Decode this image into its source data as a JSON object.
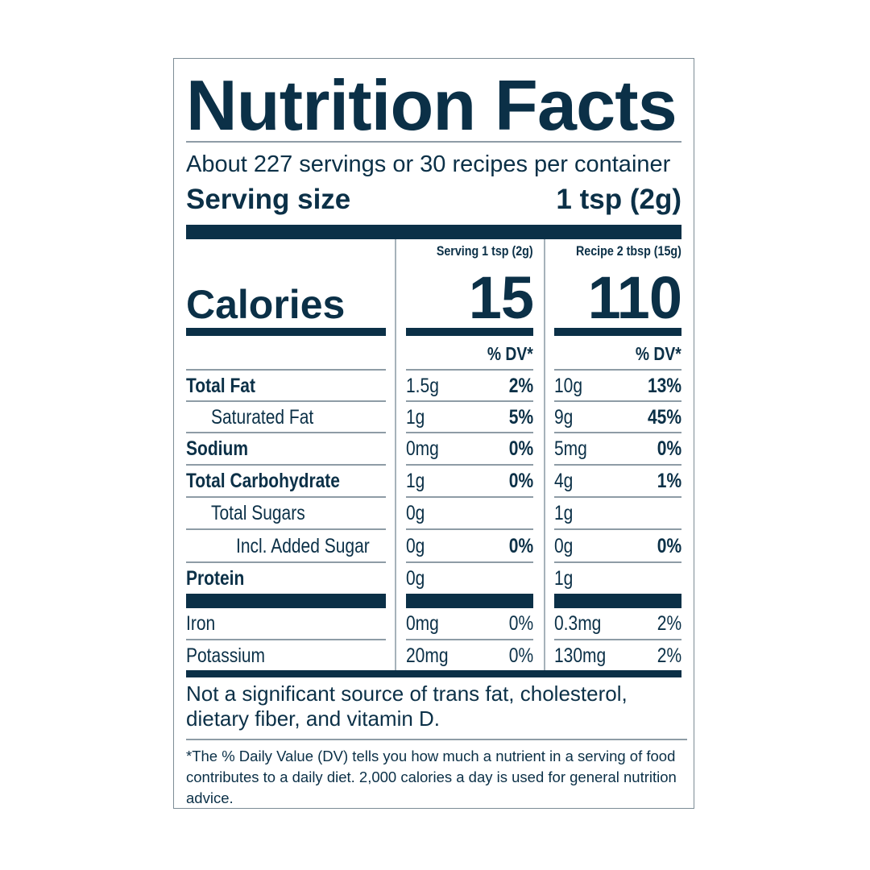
{
  "title": "Nutrition Facts",
  "servings_per_container": "About 227 servings or 30 recipes per container",
  "serving_size": {
    "label": "Serving size",
    "value": "1 tsp (2g)"
  },
  "columns": [
    {
      "header": "Serving 1 tsp (2g)",
      "calories": "15",
      "dv_header": "% DV*"
    },
    {
      "header": "Recipe 2 tbsp (15g)",
      "calories": "110",
      "dv_header": "% DV*"
    }
  ],
  "calories_label": "Calories",
  "nutrients": [
    {
      "name": "Total Fat",
      "bold": true,
      "indent": 0,
      "serving": {
        "amount": "1.5g",
        "dv": "2%"
      },
      "recipe": {
        "amount": "10g",
        "dv": "13%"
      }
    },
    {
      "name": "Saturated Fat",
      "bold": false,
      "indent": 1,
      "serving": {
        "amount": "1g",
        "dv": "5%"
      },
      "recipe": {
        "amount": "9g",
        "dv": "45%"
      }
    },
    {
      "name": "Sodium",
      "bold": true,
      "indent": 0,
      "serving": {
        "amount": "0mg",
        "dv": "0%"
      },
      "recipe": {
        "amount": "5mg",
        "dv": "0%"
      }
    },
    {
      "name": "Total Carbohydrate",
      "bold": true,
      "indent": 0,
      "serving": {
        "amount": "1g",
        "dv": "0%"
      },
      "recipe": {
        "amount": "4g",
        "dv": "1%"
      }
    },
    {
      "name": "Total Sugars",
      "bold": false,
      "indent": 1,
      "serving": {
        "amount": "0g",
        "dv": ""
      },
      "recipe": {
        "amount": "1g",
        "dv": ""
      }
    },
    {
      "name": "Incl. Added Sugar",
      "bold": false,
      "indent": 2,
      "serving": {
        "amount": "0g",
        "dv": "0%"
      },
      "recipe": {
        "amount": "0g",
        "dv": "0%"
      }
    },
    {
      "name": "Protein",
      "bold": true,
      "indent": 0,
      "serving": {
        "amount": "0g",
        "dv": ""
      },
      "recipe": {
        "amount": "1g",
        "dv": ""
      }
    }
  ],
  "vitamins": [
    {
      "name": "Iron",
      "serving": {
        "amount": "0mg",
        "dv": "0%"
      },
      "recipe": {
        "amount": "0.3mg",
        "dv": "2%"
      }
    },
    {
      "name": "Potassium",
      "serving": {
        "amount": "20mg",
        "dv": "0%"
      },
      "recipe": {
        "amount": "130mg",
        "dv": "2%"
      }
    }
  ],
  "not_significant": "Not a significant source of trans fat, cholesterol, dietary fiber, and vitamin D.",
  "footnote": "*The % Daily Value (DV) tells you how much a nutrient in a serving of food contributes to a daily diet. 2,000 calories a day is used for general nutrition advice.",
  "colors": {
    "ink": "#0b3047",
    "rule": "#8e9ca6"
  }
}
